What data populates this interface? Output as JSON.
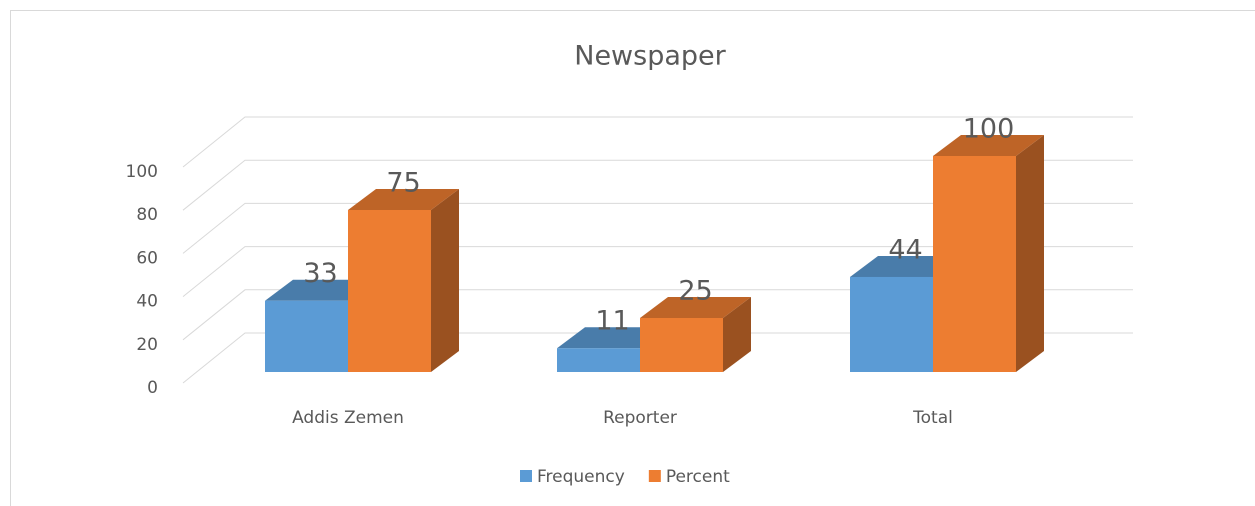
{
  "chart_data": {
    "type": "bar3d",
    "title": "Newspaper",
    "categories": [
      "Addis Zemen",
      "Reporter",
      "Total"
    ],
    "series": [
      {
        "name": "Frequency",
        "color": "#5b9bd5",
        "values": [
          33,
          11,
          44
        ]
      },
      {
        "name": "Percent",
        "color": "#ed7d31",
        "values": [
          75,
          25,
          100
        ]
      }
    ],
    "ylim": [
      0,
      120
    ],
    "yticks": [
      0,
      20,
      40,
      60,
      80,
      100
    ],
    "grid": true,
    "legend": "bottom"
  }
}
